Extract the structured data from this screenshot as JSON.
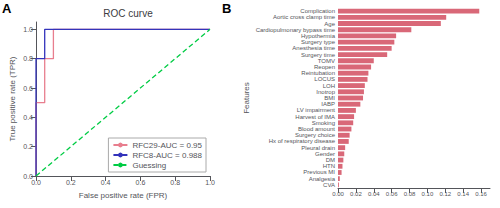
{
  "chart_data": [
    {
      "type": "line",
      "title": "ROC curve",
      "annotations": [
        "A"
      ],
      "x_label": "False positive rate (FPR)",
      "y_label": "True positive rate (TPR)",
      "series": [
        {
          "name": "RFC29-AUC = 0.95",
          "color": "#e87e8e",
          "line_style": "solid",
          "x": [
            0.0,
            0.0,
            0.05,
            0.05,
            0.1,
            0.1,
            1.0
          ],
          "values": [
            0.0,
            0.5,
            0.5,
            0.8,
            0.8,
            1.0,
            1.0
          ]
        },
        {
          "name": "RFC8-AUC = 0.988",
          "color": "#3333bb",
          "line_style": "solid",
          "x": [
            0.0,
            0.0,
            0.05,
            0.05,
            1.0
          ],
          "values": [
            0.0,
            0.8,
            0.8,
            1.0,
            1.0
          ]
        },
        {
          "name": "Guessing",
          "color": "#00cc44",
          "line_style": "dashed",
          "x": [
            0.0,
            1.0
          ],
          "values": [
            0.0,
            1.0
          ]
        }
      ],
      "xlim": [
        0,
        1
      ],
      "xticks": [
        {
          "value": 0,
          "label": "0.0"
        },
        0.2,
        0.4,
        0.6,
        0.8,
        {
          "value": 1,
          "label": "1.0"
        }
      ],
      "ylim": [
        0,
        1.05
      ],
      "yticks": [
        {
          "value": 0,
          "label": "0.0"
        },
        0.2,
        0.4,
        0.6,
        0.8,
        {
          "value": 1,
          "label": "1.0"
        }
      ],
      "grid": false,
      "legend": "lower right"
    },
    {
      "type": "bar",
      "orientation": "horizontal",
      "annotations": [
        "B"
      ],
      "y_label": "Features",
      "categories": [
        "Complication",
        "Aortic cross clamp time",
        "Age",
        "Cardiopulmonary bypass time",
        "Hypothermia",
        "Surgery type",
        "Anesthesia time",
        "Surgery time",
        "TOMV",
        "Reopen",
        "Reintubation",
        "LOCUS",
        "LOH",
        "Inotrop",
        "BMI",
        "IABP",
        "LV impairment",
        "Harvest of IMA",
        "Smoking",
        "Blood amount",
        "Surgery choice",
        "Hx of respiratory disease",
        "Pleural drain",
        "Gender",
        "DM",
        "HTN",
        "Previous MI",
        "Analgesia",
        "CVA"
      ],
      "values": [
        0.158,
        0.121,
        0.115,
        0.082,
        0.065,
        0.063,
        0.06,
        0.055,
        0.04,
        0.037,
        0.034,
        0.033,
        0.03,
        0.029,
        0.028,
        0.025,
        0.02,
        0.018,
        0.017,
        0.015,
        0.013,
        0.012,
        0.008,
        0.007,
        0.006,
        0.005,
        0.004,
        0.002,
        0.001
      ],
      "color": "#d96878",
      "xlim": [
        0,
        0.17
      ],
      "xticks": [
        {
          "value": 0,
          "label": "0.00"
        },
        0.02,
        0.04,
        0.06,
        0.08,
        {
          "value": 0.1,
          "label": "0.10"
        },
        0.12,
        0.14,
        0.16
      ],
      "grid": false
    }
  ]
}
